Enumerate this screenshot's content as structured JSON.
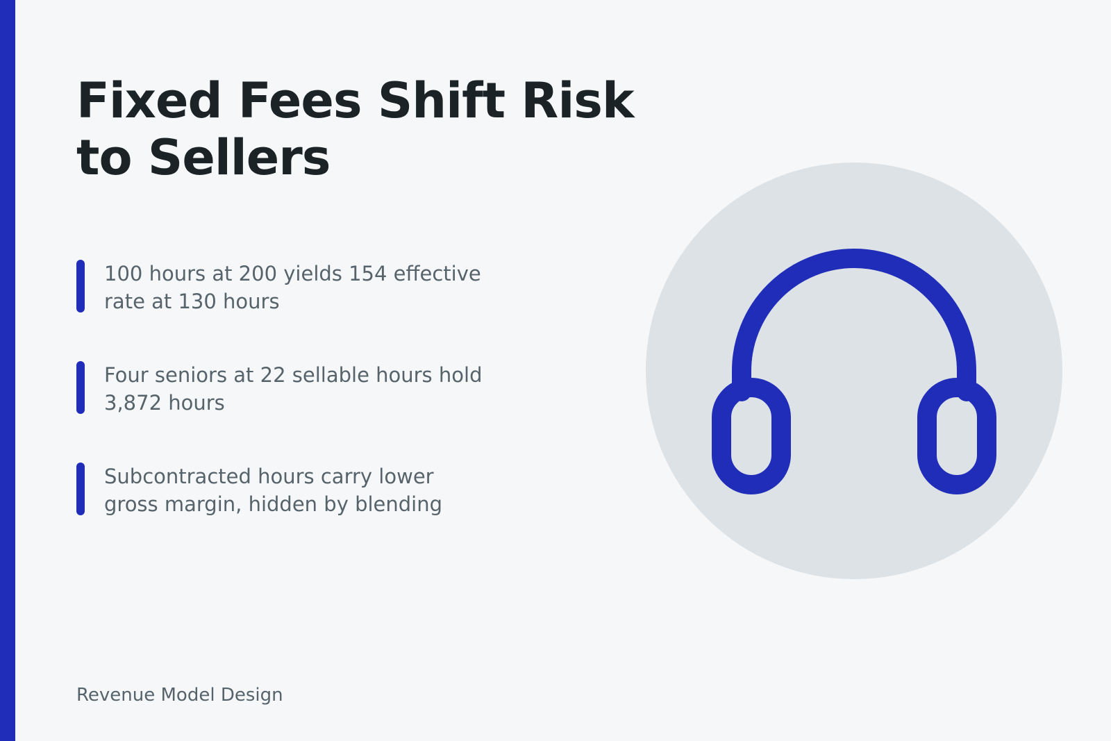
{
  "slide": {
    "title": "Fixed Fees Shift Risk to Sellers",
    "bullets": [
      {
        "text": "100 hours at 200 yields 154 effective rate at 130 hours"
      },
      {
        "text": "Four seniors at 22 sellable hours hold 3,872 hours"
      },
      {
        "text": "Subcontracted hours carry lower gross margin, hidden by blending"
      }
    ],
    "footer": "Revenue Model Design",
    "illustration": {
      "icon": "headphones-icon",
      "accent_color": "#1f2db8",
      "circle_color": "#dde2e6"
    }
  }
}
